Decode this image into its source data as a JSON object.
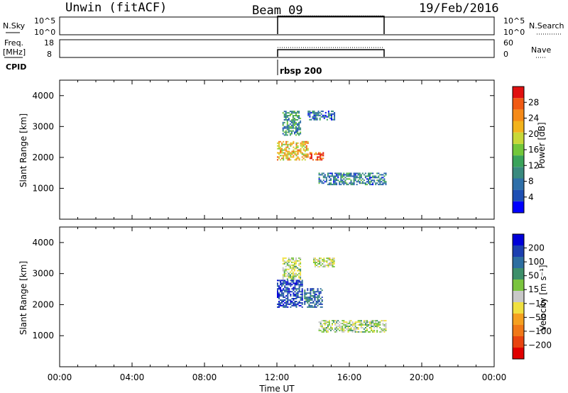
{
  "header": {
    "station": "Unwin (fitACF)",
    "beam": "Beam 09",
    "date": "19/Feb/2016"
  },
  "top_panels": {
    "nsky_label": "N.Sky",
    "nsearch_label": "N.Search",
    "nsky_ticks": [
      "10^5",
      "10^0"
    ],
    "nsky_ticks_right": [
      "10^5",
      "10^0"
    ],
    "freq_label_1": "Freq.",
    "freq_label_2": "[MHz]",
    "freq_ticks": [
      "18",
      "8"
    ],
    "nave_label": "Nave",
    "nave_ticks": [
      "60",
      "0"
    ],
    "cpid_label": "CPID",
    "cpid_value": "rbsp 200"
  },
  "colors": {
    "power_scale": [
      "#0000ff",
      "#1e4fb3",
      "#2f6fa8",
      "#3a8a7e",
      "#3aa35a",
      "#72c73a",
      "#c8d838",
      "#f2b31c",
      "#f58a18",
      "#f05a14",
      "#e01010"
    ],
    "velocity_scale": [
      "#0000d8",
      "#1c3fb0",
      "#2d6ea0",
      "#3d8f6a",
      "#7ac43e",
      "#c8c8c8",
      "#f0e040",
      "#f5a020",
      "#f07818",
      "#e84410",
      "#e00000"
    ]
  },
  "chart_data": [
    {
      "type": "heatmap",
      "title": "",
      "xlabel": "Time UT",
      "ylabel": "Slant Range [km]",
      "xlim": [
        "00:00",
        "00:00"
      ],
      "x_ticks": [
        "00:00",
        "04:00",
        "08:00",
        "12:00",
        "16:00",
        "20:00",
        "00:00"
      ],
      "ylim": [
        0,
        4500
      ],
      "y_ticks": [
        1000,
        2000,
        3000,
        4000
      ],
      "colorbar_label": "Power [dB]",
      "colorbar_ticks": [
        4,
        8,
        12,
        16,
        20,
        24,
        28
      ],
      "colorbar_range": [
        0,
        32
      ],
      "data_time_range": [
        "12:00",
        "18:00"
      ],
      "echo_regions": [
        {
          "t_start": 12.0,
          "t_end": 13.7,
          "range_start_km": 1900,
          "range_end_km": 2500,
          "value": 22
        },
        {
          "t_start": 13.8,
          "t_end": 14.6,
          "range_start_km": 1900,
          "range_end_km": 2150,
          "value": 30
        },
        {
          "t_start": 12.3,
          "t_end": 13.3,
          "range_start_km": 2700,
          "range_end_km": 3500,
          "value": 10
        },
        {
          "t_start": 13.7,
          "t_end": 15.2,
          "range_start_km": 3200,
          "range_end_km": 3500,
          "value": 6
        },
        {
          "t_start": 14.3,
          "t_end": 18.0,
          "range_start_km": 1100,
          "range_end_km": 1500,
          "value": 8
        }
      ]
    },
    {
      "type": "heatmap",
      "title": "",
      "xlabel": "Time UT",
      "ylabel": "Slant Range [km]",
      "xlim": [
        "00:00",
        "00:00"
      ],
      "x_ticks": [
        "00:00",
        "04:00",
        "08:00",
        "12:00",
        "16:00",
        "20:00",
        "00:00"
      ],
      "ylim": [
        0,
        4500
      ],
      "y_ticks": [
        1000,
        2000,
        3000,
        4000
      ],
      "colorbar_label": "Velocity [m s⁻¹]",
      "colorbar_ticks": [
        "200",
        "100",
        "50",
        "15",
        "−15",
        "−50",
        "−100",
        "−200"
      ],
      "data_time_range": [
        "12:00",
        "18:00"
      ],
      "echo_regions": [
        {
          "t_start": 12.0,
          "t_end": 13.4,
          "range_start_km": 1900,
          "range_end_km": 2800,
          "value": 200
        },
        {
          "t_start": 13.5,
          "t_end": 14.5,
          "range_start_km": 1900,
          "range_end_km": 2500,
          "value": 150
        },
        {
          "t_start": 12.3,
          "t_end": 13.3,
          "range_start_km": 2800,
          "range_end_km": 3500,
          "value": 10
        },
        {
          "t_start": 14.0,
          "t_end": 15.2,
          "range_start_km": 3200,
          "range_end_km": 3500,
          "value": 0
        },
        {
          "t_start": 14.3,
          "t_end": 18.0,
          "range_start_km": 1100,
          "range_end_km": 1500,
          "value": 20
        }
      ]
    }
  ]
}
